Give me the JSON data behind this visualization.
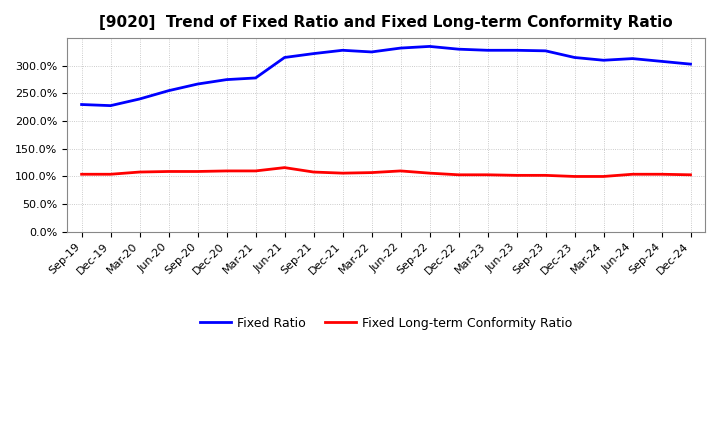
{
  "title": "[9020]  Trend of Fixed Ratio and Fixed Long-term Conformity Ratio",
  "x_labels": [
    "Sep-19",
    "Dec-19",
    "Mar-20",
    "Jun-20",
    "Sep-20",
    "Dec-20",
    "Mar-21",
    "Jun-21",
    "Sep-21",
    "Dec-21",
    "Mar-22",
    "Jun-22",
    "Sep-22",
    "Dec-22",
    "Mar-23",
    "Jun-23",
    "Sep-23",
    "Dec-23",
    "Mar-24",
    "Jun-24",
    "Sep-24",
    "Dec-24"
  ],
  "fixed_ratio": [
    230,
    228,
    240,
    255,
    267,
    275,
    278,
    315,
    322,
    328,
    325,
    332,
    335,
    330,
    328,
    328,
    327,
    315,
    310,
    313,
    308,
    303
  ],
  "fixed_ltcr": [
    104,
    104,
    108,
    109,
    109,
    110,
    110,
    116,
    108,
    106,
    107,
    110,
    106,
    103,
    103,
    102,
    102,
    100,
    100,
    104,
    104,
    103
  ],
  "fixed_ratio_color": "#0000FF",
  "fixed_ltcr_color": "#FF0000",
  "ylim": [
    0,
    350
  ],
  "yticks": [
    0,
    50,
    100,
    150,
    200,
    250,
    300
  ],
  "background_color": "#FFFFFF",
  "grid_color": "#BBBBBB",
  "legend_fixed_ratio": "Fixed Ratio",
  "legend_fixed_ltcr": "Fixed Long-term Conformity Ratio",
  "title_fontsize": 11,
  "tick_fontsize": 8,
  "legend_fontsize": 9,
  "line_width": 2.0
}
